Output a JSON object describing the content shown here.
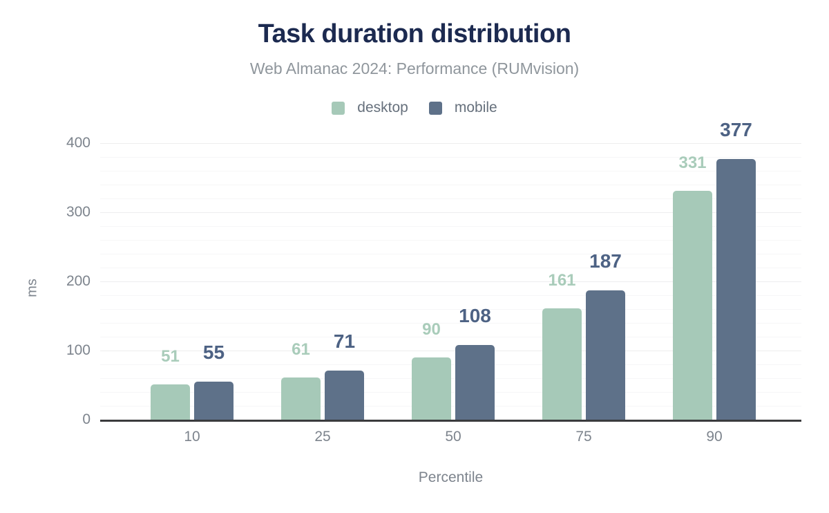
{
  "chart_data": {
    "type": "bar",
    "title": "Task duration distribution",
    "subtitle": "Web Almanac 2024: Performance (RUMvision)",
    "xlabel": "Percentile",
    "ylabel": "ms",
    "categories": [
      "10",
      "25",
      "50",
      "75",
      "90"
    ],
    "series": [
      {
        "name": "desktop",
        "color": "#a6c9b8",
        "label_color": "#a9ccba",
        "values": [
          51,
          61,
          90,
          161,
          331
        ]
      },
      {
        "name": "mobile",
        "color": "#5e7189",
        "label_color": "#4d6284",
        "values": [
          55,
          71,
          108,
          187,
          377
        ]
      }
    ],
    "ylim": [
      0,
      400
    ],
    "ytick_step": 100,
    "minor_grid_step": 20,
    "yticks": [
      "0",
      "100",
      "200",
      "300",
      "400"
    ],
    "grid": true,
    "legend_position": "top"
  },
  "colors": {
    "title_text": "#1c2a50",
    "subtitle_text": "#8f969c",
    "legend_text": "#66707c",
    "axis_text": "#7d848d",
    "axis_line": "#3a3b3d",
    "major_gridline": "#ededee",
    "minor_gridline": "#f6f6f7",
    "background": "#ffffff"
  }
}
